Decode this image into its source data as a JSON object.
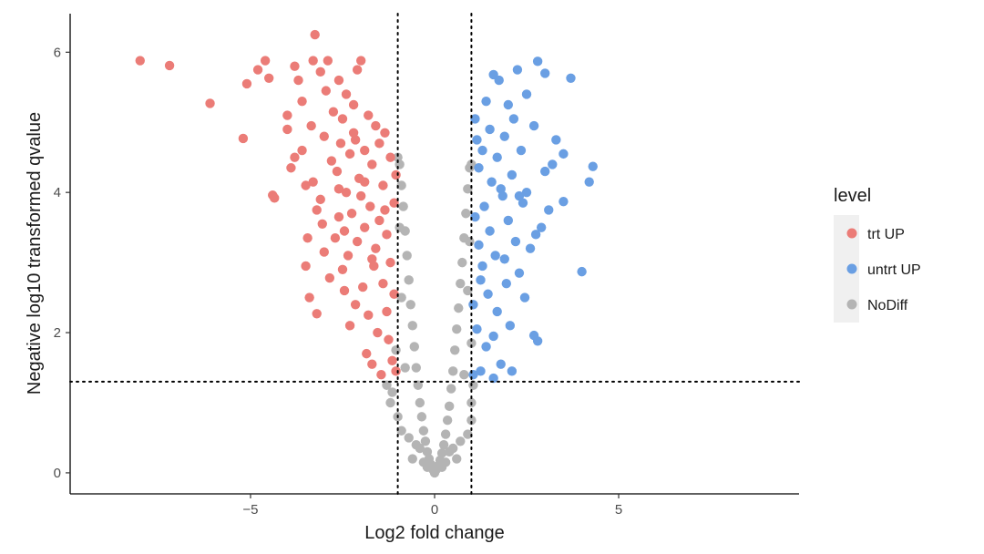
{
  "chart_data": {
    "type": "scatter",
    "title": "",
    "xlabel": "Log2 fold change",
    "ylabel": "Negative log10 transformed qvalue",
    "xlim": [
      -9.9,
      9.9
    ],
    "ylim": [
      -0.3,
      6.55
    ],
    "x_ticks": [
      -5,
      0,
      5
    ],
    "x_tick_labels": [
      "−5",
      "0",
      "5"
    ],
    "y_ticks": [
      0,
      2,
      4,
      6
    ],
    "y_tick_labels": [
      "0",
      "2",
      "4",
      "6"
    ],
    "grid": false,
    "thresholds": {
      "fold_change": [
        -1,
        1
      ],
      "neg_log10_qvalue": 1.3
    },
    "legend": {
      "title": "level",
      "position": "right",
      "entries": [
        {
          "label": "trt UP",
          "color": "#EB7C77"
        },
        {
          "label": "untrt UP",
          "color": "#6A9FE3"
        },
        {
          "label": "NoDiff",
          "color": "#B4B4B4"
        }
      ]
    },
    "series": [
      {
        "name": "trt UP",
        "color": "#EB7C77",
        "points": [
          [
            -8.0,
            5.88
          ],
          [
            -7.2,
            5.81
          ],
          [
            -6.1,
            5.27
          ],
          [
            -5.2,
            4.77
          ],
          [
            -5.1,
            5.55
          ],
          [
            -4.8,
            5.75
          ],
          [
            -4.6,
            5.88
          ],
          [
            -4.5,
            5.63
          ],
          [
            -4.4,
            3.96
          ],
          [
            -4.35,
            3.92
          ],
          [
            -4.0,
            5.1
          ],
          [
            -4.0,
            4.9
          ],
          [
            -3.9,
            4.35
          ],
          [
            -3.8,
            4.5
          ],
          [
            -3.8,
            5.8
          ],
          [
            -3.7,
            5.6
          ],
          [
            -3.6,
            4.6
          ],
          [
            -3.6,
            5.3
          ],
          [
            -3.5,
            4.1
          ],
          [
            -3.5,
            2.95
          ],
          [
            -3.45,
            3.35
          ],
          [
            -3.4,
            2.5
          ],
          [
            -3.35,
            4.95
          ],
          [
            -3.3,
            5.88
          ],
          [
            -3.3,
            4.15
          ],
          [
            -3.25,
            6.25
          ],
          [
            -3.2,
            2.27
          ],
          [
            -3.2,
            3.75
          ],
          [
            -3.1,
            5.72
          ],
          [
            -3.05,
            3.55
          ],
          [
            -3.0,
            3.15
          ],
          [
            -3.0,
            4.8
          ],
          [
            -2.95,
            5.45
          ],
          [
            -2.9,
            5.88
          ],
          [
            -2.85,
            2.78
          ],
          [
            -2.8,
            4.45
          ],
          [
            -2.75,
            5.15
          ],
          [
            -2.7,
            3.35
          ],
          [
            -2.65,
            4.3
          ],
          [
            -2.6,
            5.6
          ],
          [
            -2.6,
            3.65
          ],
          [
            -2.55,
            4.7
          ],
          [
            -2.5,
            5.05
          ],
          [
            -2.5,
            2.9
          ],
          [
            -2.45,
            3.45
          ],
          [
            -2.4,
            5.4
          ],
          [
            -2.4,
            4.0
          ],
          [
            -2.35,
            3.1
          ],
          [
            -2.3,
            4.55
          ],
          [
            -2.3,
            2.1
          ],
          [
            -2.25,
            3.7
          ],
          [
            -2.2,
            5.25
          ],
          [
            -2.2,
            4.85
          ],
          [
            -2.15,
            2.4
          ],
          [
            -2.1,
            3.3
          ],
          [
            -2.1,
            5.75
          ],
          [
            -2.05,
            4.2
          ],
          [
            -2.0,
            3.95
          ],
          [
            -2.0,
            5.88
          ],
          [
            -1.95,
            2.65
          ],
          [
            -1.9,
            4.6
          ],
          [
            -1.9,
            3.5
          ],
          [
            -1.85,
            1.7
          ],
          [
            -1.8,
            5.1
          ],
          [
            -1.8,
            2.25
          ],
          [
            -1.75,
            3.8
          ],
          [
            -1.7,
            4.4
          ],
          [
            -1.7,
            1.55
          ],
          [
            -1.65,
            2.95
          ],
          [
            -1.6,
            4.95
          ],
          [
            -1.6,
            3.2
          ],
          [
            -1.55,
            2.0
          ],
          [
            -1.5,
            4.7
          ],
          [
            -1.5,
            3.6
          ],
          [
            -1.45,
            1.4
          ],
          [
            -1.4,
            4.1
          ],
          [
            -1.4,
            2.7
          ],
          [
            -1.35,
            4.85
          ],
          [
            -1.3,
            3.4
          ],
          [
            -1.3,
            2.3
          ],
          [
            -1.25,
            1.9
          ],
          [
            -1.2,
            4.5
          ],
          [
            -1.2,
            3.0
          ],
          [
            -1.15,
            1.6
          ],
          [
            -1.1,
            3.85
          ],
          [
            -1.1,
            2.55
          ],
          [
            -1.05,
            4.25
          ],
          [
            -1.05,
            1.45
          ],
          [
            -2.6,
            4.05
          ],
          [
            -3.1,
            3.9
          ],
          [
            -2.15,
            4.75
          ],
          [
            -1.9,
            4.15
          ],
          [
            -2.45,
            2.6
          ],
          [
            -1.35,
            3.75
          ],
          [
            -1.7,
            3.05
          ]
        ]
      },
      {
        "name": "untrt UP",
        "color": "#6A9FE3",
        "points": [
          [
            4.3,
            4.37
          ],
          [
            4.2,
            4.15
          ],
          [
            4.0,
            2.87
          ],
          [
            3.7,
            5.63
          ],
          [
            3.5,
            3.87
          ],
          [
            3.3,
            4.75
          ],
          [
            3.2,
            4.4
          ],
          [
            3.1,
            3.75
          ],
          [
            3.0,
            5.7
          ],
          [
            3.0,
            4.3
          ],
          [
            2.9,
            3.5
          ],
          [
            2.8,
            5.87
          ],
          [
            2.8,
            1.88
          ],
          [
            2.7,
            1.96
          ],
          [
            2.7,
            4.95
          ],
          [
            2.6,
            3.2
          ],
          [
            2.5,
            4.0
          ],
          [
            2.5,
            5.4
          ],
          [
            2.45,
            2.5
          ],
          [
            2.4,
            3.85
          ],
          [
            2.35,
            4.6
          ],
          [
            2.3,
            2.85
          ],
          [
            2.25,
            5.75
          ],
          [
            2.2,
            3.3
          ],
          [
            2.15,
            5.05
          ],
          [
            2.1,
            4.25
          ],
          [
            2.05,
            2.1
          ],
          [
            2.0,
            3.6
          ],
          [
            2.0,
            5.25
          ],
          [
            1.95,
            2.7
          ],
          [
            1.9,
            4.8
          ],
          [
            1.85,
            3.95
          ],
          [
            1.8,
            1.55
          ],
          [
            1.75,
            5.6
          ],
          [
            1.7,
            4.5
          ],
          [
            1.7,
            2.3
          ],
          [
            1.65,
            3.1
          ],
          [
            1.6,
            5.68
          ],
          [
            1.6,
            1.35
          ],
          [
            1.55,
            4.15
          ],
          [
            1.5,
            3.45
          ],
          [
            1.5,
            4.9
          ],
          [
            1.45,
            2.55
          ],
          [
            1.4,
            5.3
          ],
          [
            1.4,
            1.8
          ],
          [
            1.35,
            3.8
          ],
          [
            1.3,
            4.6
          ],
          [
            1.3,
            2.95
          ],
          [
            1.25,
            1.45
          ],
          [
            1.2,
            4.35
          ],
          [
            1.2,
            3.25
          ],
          [
            1.15,
            2.05
          ],
          [
            1.1,
            5.05
          ],
          [
            1.1,
            3.65
          ],
          [
            1.05,
            2.4
          ],
          [
            1.05,
            1.4
          ],
          [
            1.15,
            4.75
          ],
          [
            1.9,
            3.05
          ],
          [
            2.3,
            3.95
          ],
          [
            1.25,
            2.75
          ],
          [
            3.5,
            4.55
          ],
          [
            2.75,
            3.4
          ],
          [
            1.6,
            1.95
          ],
          [
            1.8,
            4.05
          ],
          [
            2.1,
            1.45
          ]
        ]
      },
      {
        "name": "NoDiff",
        "color": "#B4B4B4",
        "points": [
          [
            0.0,
            0.0
          ],
          [
            -0.05,
            0.05
          ],
          [
            0.05,
            0.05
          ],
          [
            -0.1,
            0.12
          ],
          [
            0.1,
            0.1
          ],
          [
            -0.15,
            0.2
          ],
          [
            0.15,
            0.18
          ],
          [
            -0.2,
            0.3
          ],
          [
            0.2,
            0.28
          ],
          [
            -0.25,
            0.45
          ],
          [
            0.25,
            0.4
          ],
          [
            -0.3,
            0.6
          ],
          [
            0.3,
            0.55
          ],
          [
            -0.35,
            0.8
          ],
          [
            0.35,
            0.75
          ],
          [
            -0.4,
            1.0
          ],
          [
            0.4,
            0.95
          ],
          [
            -0.45,
            1.25
          ],
          [
            0.45,
            1.2
          ],
          [
            -0.5,
            1.5
          ],
          [
            0.5,
            1.45
          ],
          [
            -0.55,
            1.8
          ],
          [
            0.55,
            1.75
          ],
          [
            -0.6,
            2.1
          ],
          [
            0.6,
            2.05
          ],
          [
            -0.65,
            2.4
          ],
          [
            0.65,
            2.35
          ],
          [
            -0.7,
            2.75
          ],
          [
            0.7,
            2.7
          ],
          [
            -0.75,
            3.1
          ],
          [
            0.75,
            3.0
          ],
          [
            -0.8,
            3.45
          ],
          [
            0.8,
            3.35
          ],
          [
            -0.85,
            3.8
          ],
          [
            0.85,
            3.7
          ],
          [
            -0.9,
            4.1
          ],
          [
            0.9,
            4.05
          ],
          [
            -0.95,
            4.4
          ],
          [
            0.95,
            4.35
          ],
          [
            -1.0,
            4.5
          ],
          [
            1.0,
            4.4
          ],
          [
            -0.5,
            0.4
          ],
          [
            0.5,
            0.35
          ],
          [
            -0.7,
            0.5
          ],
          [
            0.7,
            0.45
          ],
          [
            -0.9,
            0.6
          ],
          [
            0.9,
            0.55
          ],
          [
            -1.0,
            0.8
          ],
          [
            1.0,
            0.75
          ],
          [
            -1.2,
            1.0
          ],
          [
            1.0,
            1.0
          ],
          [
            -1.3,
            1.25
          ],
          [
            1.05,
            1.25
          ],
          [
            -0.6,
            0.2
          ],
          [
            0.6,
            0.2
          ],
          [
            -0.8,
            1.5
          ],
          [
            0.8,
            1.4
          ],
          [
            -0.9,
            2.5
          ],
          [
            0.9,
            2.6
          ],
          [
            -0.95,
            3.5
          ],
          [
            0.95,
            3.3
          ],
          [
            -0.3,
            0.15
          ],
          [
            0.3,
            0.15
          ],
          [
            -0.4,
            0.35
          ],
          [
            0.4,
            0.3
          ],
          [
            -0.2,
            0.08
          ],
          [
            0.2,
            0.08
          ],
          [
            -1.05,
            1.75
          ],
          [
            1.0,
            1.85
          ],
          [
            -1.15,
            1.15
          ]
        ]
      }
    ]
  }
}
